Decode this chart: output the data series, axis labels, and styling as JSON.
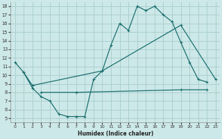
{
  "xlabel": "Humidex (Indice chaleur)",
  "bg_color": "#cde8e8",
  "grid_color": "#aacfcf",
  "line_color": "#1a6e6e",
  "xlim": [
    -0.5,
    23.5
  ],
  "ylim": [
    4.5,
    18.5
  ],
  "xticks": [
    0,
    1,
    2,
    3,
    4,
    5,
    6,
    7,
    8,
    9,
    10,
    11,
    12,
    13,
    14,
    15,
    16,
    17,
    18,
    19,
    20,
    21,
    22,
    23
  ],
  "yticks": [
    5,
    6,
    7,
    8,
    9,
    10,
    11,
    12,
    13,
    14,
    15,
    16,
    17,
    18
  ],
  "line1_x": [
    0,
    1,
    2,
    3,
    4,
    5,
    6,
    7,
    8,
    9,
    10,
    11,
    12,
    13,
    14,
    15,
    16,
    17,
    18,
    19,
    20,
    21,
    22
  ],
  "line1_y": [
    11.5,
    10.3,
    8.5,
    7.5,
    7.0,
    5.5,
    5.2,
    5.2,
    5.2,
    9.5,
    10.5,
    13.5,
    16.0,
    15.2,
    18.0,
    17.5,
    18.0,
    17.0,
    16.2,
    13.8,
    11.5,
    9.5,
    9.2
  ],
  "line2_x": [
    1,
    2,
    10,
    19,
    23
  ],
  "line2_y": [
    10.3,
    8.8,
    10.5,
    15.8,
    9.5
  ],
  "line3_x": [
    3,
    7,
    19,
    22
  ],
  "line3_y": [
    8.0,
    8.0,
    8.3,
    8.3
  ]
}
